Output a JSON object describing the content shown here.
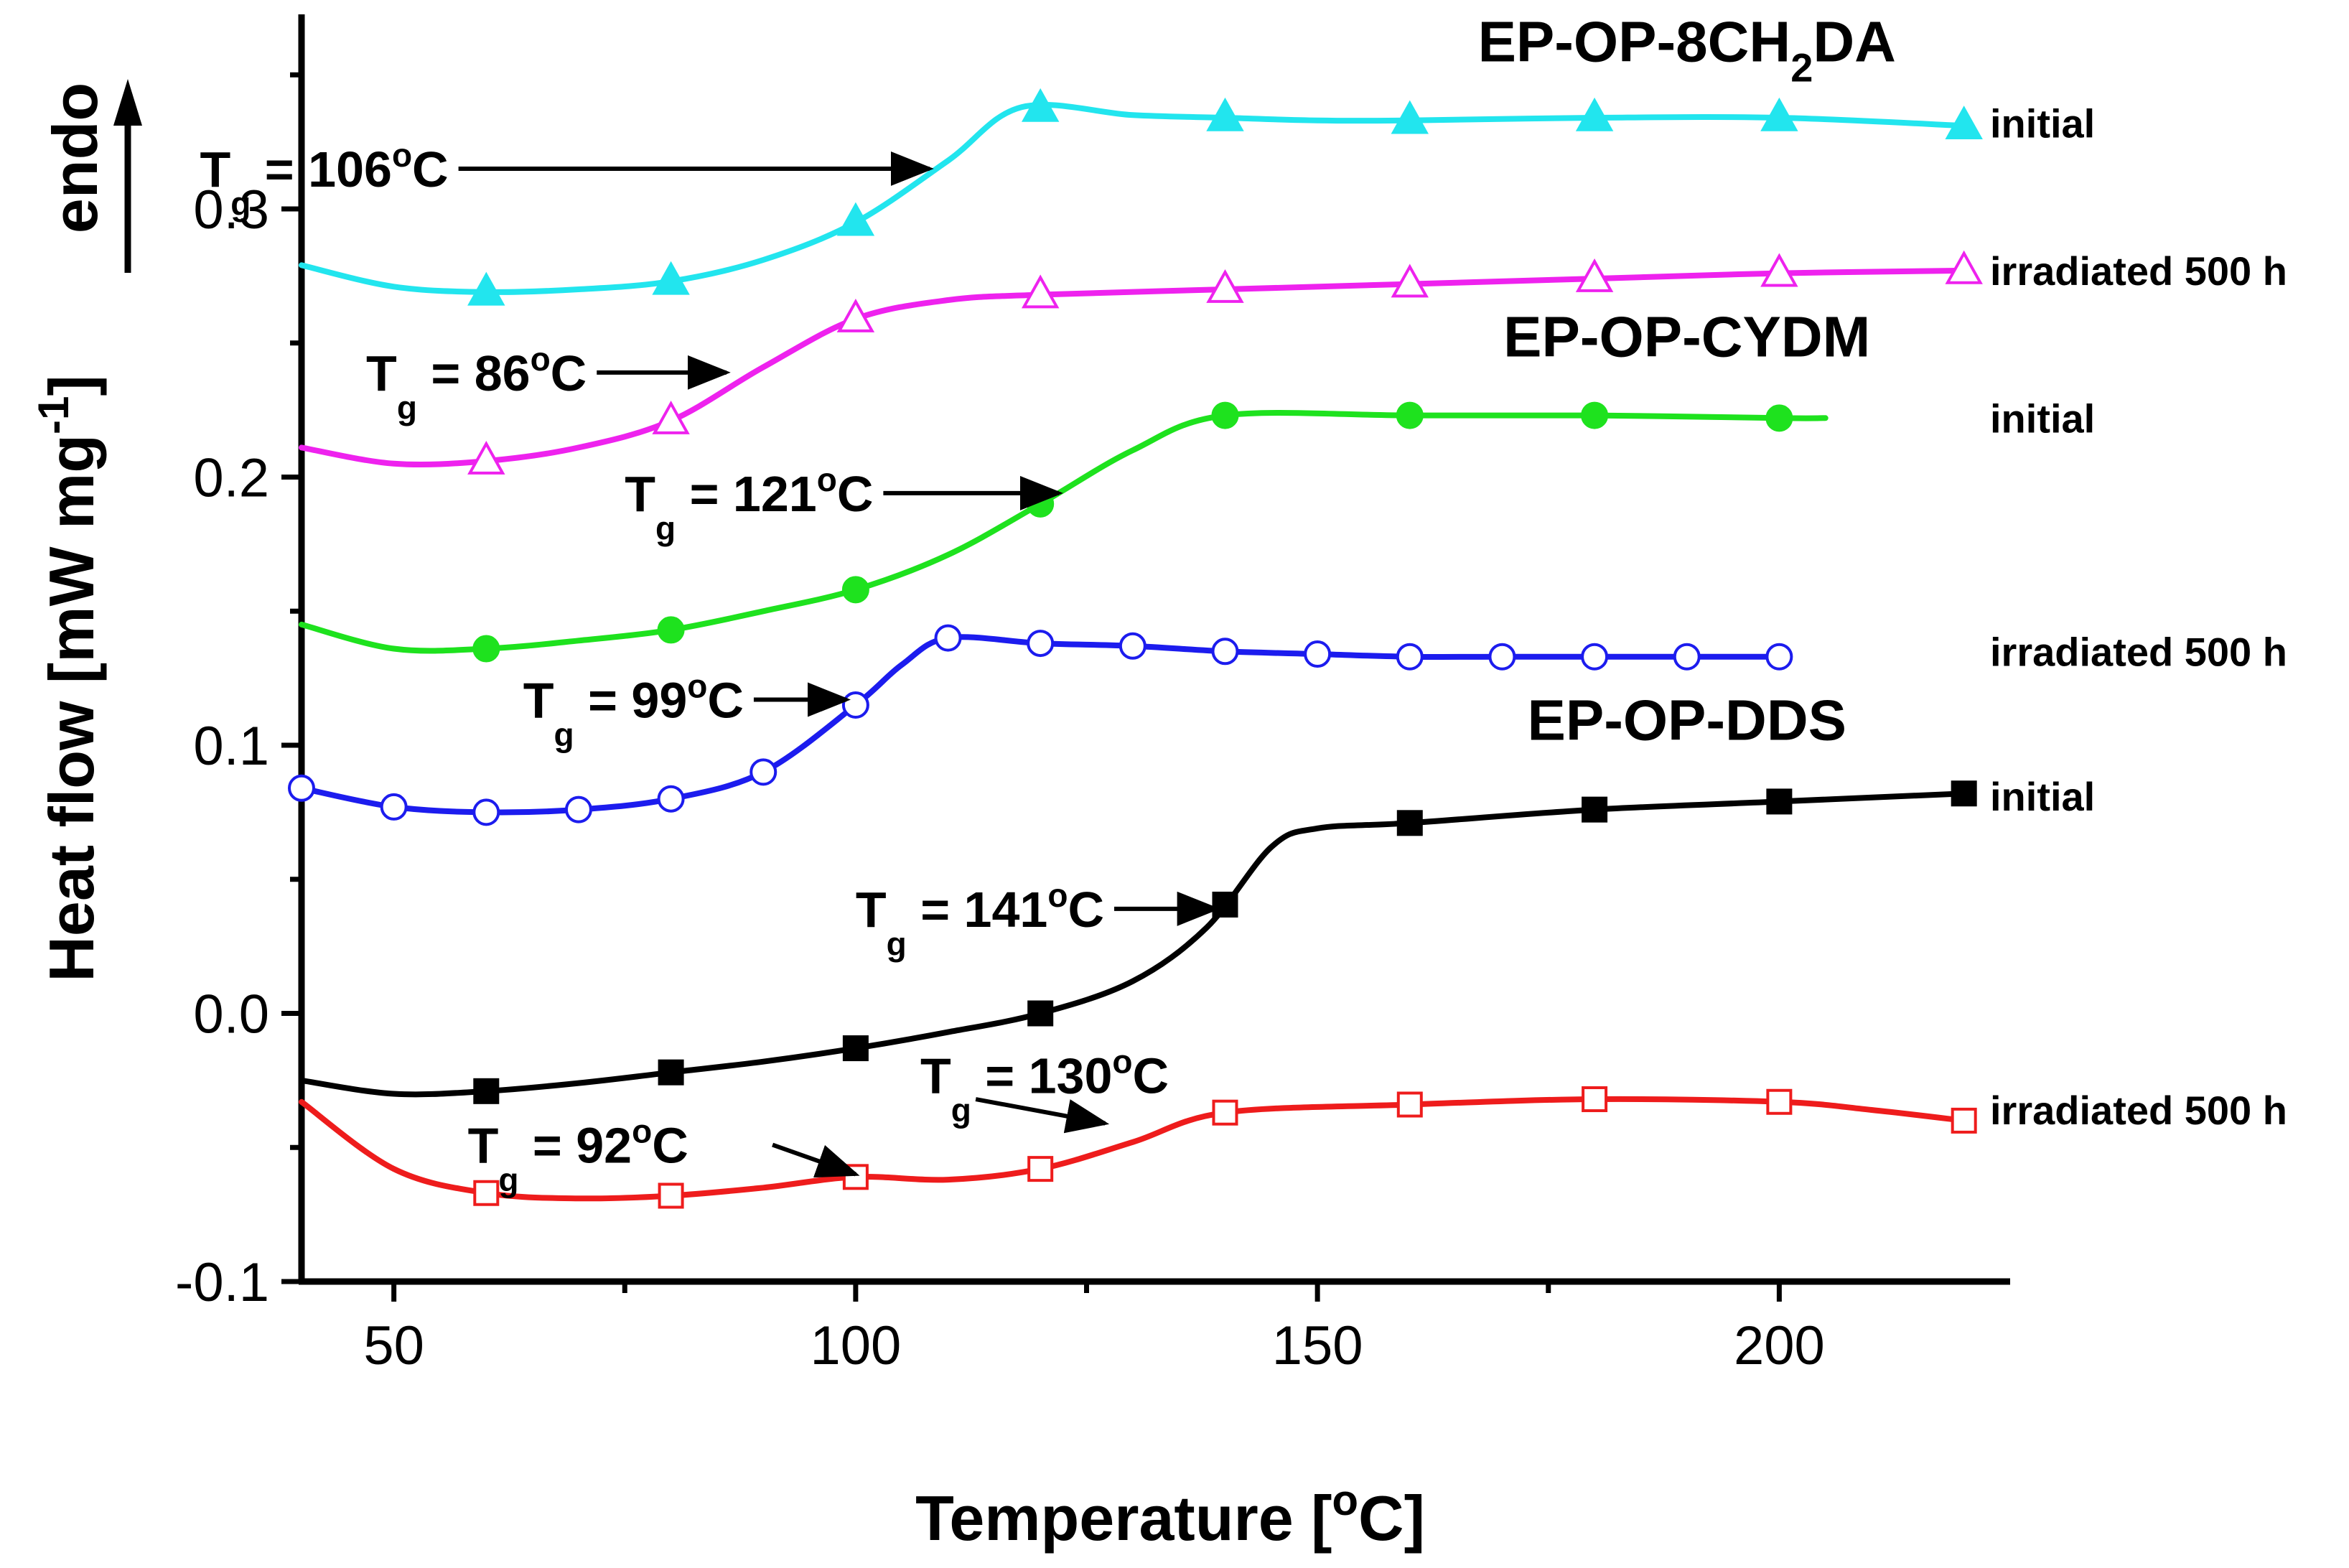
{
  "chart_data": {
    "type": "line",
    "xlabel": {
      "main": "Temperature [",
      "sup": "o",
      "unit": "C]"
    },
    "ylabel": {
      "main": "Heat flow [mW mg",
      "sup": "-1",
      "close": "]"
    },
    "endo_label": "endo",
    "xlim": [
      40,
      225
    ],
    "ylim": [
      -0.1,
      0.38
    ],
    "x_ticks": [
      50,
      100,
      150,
      200
    ],
    "x_tick_labels": [
      "50",
      "100",
      "150",
      "200"
    ],
    "y_ticks": [
      -0.1,
      0.0,
      0.1,
      0.2,
      0.3
    ],
    "y_tick_labels": [
      "-0.1",
      "0.0",
      "0.1",
      "0.2",
      "0.3"
    ],
    "group_labels": [
      {
        "name": "ep-op-8ch2da",
        "parts": [
          "EP-OP-8CH",
          "2",
          "DA"
        ],
        "x": 190,
        "y": 0.355
      },
      {
        "name": "ep-op-cydm",
        "parts": [
          "EP-OP-CYDM"
        ],
        "x": 190,
        "y": 0.245
      },
      {
        "name": "ep-op-dds",
        "parts": [
          "EP-OP-DDS"
        ],
        "x": 190,
        "y": 0.102
      }
    ],
    "series": [
      {
        "name": "EP-OP-8CH2DA initial",
        "group": "EP-OP-8CH2DA",
        "state": "initial",
        "color": "#22e5ee",
        "marker": "triangle",
        "filled": true,
        "x": [
          40,
          50,
          60,
          70,
          80,
          90,
          100,
          110,
          118,
          130,
          140,
          150,
          160,
          180,
          200,
          220
        ],
        "y": [
          0.279,
          0.271,
          0.269,
          0.27,
          0.273,
          0.281,
          0.295,
          0.318,
          0.338,
          0.335,
          0.334,
          0.333,
          0.333,
          0.334,
          0.334,
          0.331
        ],
        "marker_x": [
          60,
          80,
          100,
          120,
          140,
          160,
          180,
          200,
          220
        ],
        "tg": {
          "label": "T",
          "sub": "g",
          "value": " = 106",
          "sup": "o",
          "unit": "C",
          "x": 29,
          "y": 0.315,
          "arrow_to": [
            108,
            0.315
          ]
        }
      },
      {
        "name": "EP-OP-8CH2DA irradiated 500 h",
        "group": "EP-OP-8CH2DA",
        "state": "irradiated 500 h",
        "color": "#ee22ee",
        "marker": "triangle",
        "filled": false,
        "x": [
          40,
          50,
          60,
          70,
          80,
          90,
          100,
          110,
          120,
          140,
          160,
          180,
          200,
          220
        ],
        "y": [
          0.211,
          0.205,
          0.206,
          0.211,
          0.221,
          0.241,
          0.259,
          0.266,
          0.268,
          0.27,
          0.272,
          0.274,
          0.276,
          0.277
        ],
        "marker_x": [
          60,
          80,
          100,
          120,
          140,
          160,
          180,
          200,
          220
        ],
        "tg": {
          "label": "T",
          "sub": "g",
          "value": " = 86",
          "sup": "o",
          "unit": "C",
          "x": 47,
          "y": 0.239,
          "arrow_to": [
            86,
            0.239
          ]
        }
      },
      {
        "name": "EP-OP-CYDM initial",
        "group": "EP-OP-CYDM",
        "state": "initial",
        "color": "#1ee21e",
        "marker": "circle",
        "filled": true,
        "x": [
          40,
          50,
          60,
          70,
          80,
          90,
          100,
          110,
          120,
          130,
          140,
          160,
          180,
          200,
          205
        ],
        "y": [
          0.145,
          0.136,
          0.136,
          0.139,
          0.143,
          0.15,
          0.158,
          0.171,
          0.19,
          0.21,
          0.223,
          0.223,
          0.223,
          0.222,
          0.222
        ],
        "marker_x": [
          60,
          80,
          100,
          120,
          140,
          160,
          180,
          200
        ],
        "tg": {
          "label": "T",
          "sub": "g",
          "value": " = 121",
          "sup": "o",
          "unit": "C",
          "x": 75,
          "y": 0.194,
          "arrow_to": [
            122,
            0.194
          ]
        }
      },
      {
        "name": "EP-OP-CYDM irradiated 500 h",
        "group": "EP-OP-CYDM",
        "state": "irradiated 500 h",
        "color": "#1c1cee",
        "marker": "circle",
        "filled": false,
        "x": [
          40,
          50,
          60,
          70,
          80,
          90,
          100,
          105,
          110,
          120,
          130,
          140,
          150,
          160,
          170,
          180,
          190,
          200
        ],
        "y": [
          0.084,
          0.077,
          0.075,
          0.076,
          0.08,
          0.09,
          0.115,
          0.13,
          0.14,
          0.138,
          0.137,
          0.135,
          0.134,
          0.133,
          0.133,
          0.133,
          0.133,
          0.133
        ],
        "marker_x": [
          40,
          50,
          60,
          70,
          80,
          90,
          100,
          110,
          120,
          130,
          140,
          150,
          160,
          170,
          180,
          190,
          200
        ],
        "tg": {
          "label": "T",
          "sub": "g",
          "value": " = 99",
          "sup": "o",
          "unit": "C",
          "x": 64,
          "y": 0.117,
          "arrow_to": [
            99,
            0.117
          ]
        }
      },
      {
        "name": "EP-OP-DDS initial",
        "group": "EP-OP-DDS",
        "state": "initial",
        "color": "#000000",
        "marker": "square",
        "filled": true,
        "x": [
          40,
          50,
          60,
          70,
          80,
          90,
          100,
          110,
          120,
          130,
          138,
          145,
          150,
          160,
          180,
          200,
          220
        ],
        "y": [
          -0.025,
          -0.03,
          -0.029,
          -0.026,
          -0.022,
          -0.018,
          -0.013,
          -0.007,
          0.0,
          0.012,
          0.032,
          0.062,
          0.069,
          0.071,
          0.076,
          0.079,
          0.082
        ],
        "marker_x": [
          60,
          80,
          100,
          120,
          140,
          160,
          180,
          200,
          220
        ],
        "tg": {
          "label": "T",
          "sub": "g",
          "value": " = 141",
          "sup": "o",
          "unit": "C",
          "x": 100,
          "y": 0.039,
          "arrow_to": [
            139,
            0.039
          ]
        }
      },
      {
        "name": "EP-OP-DDS irradiated 500 h",
        "group": "EP-OP-DDS",
        "state": "irradiated 500 h",
        "color": "#ee1c1c",
        "marker": "square",
        "filled": false,
        "x": [
          40,
          50,
          60,
          70,
          80,
          90,
          100,
          110,
          120,
          130,
          140,
          160,
          180,
          200,
          210,
          220
        ],
        "y": [
          -0.033,
          -0.058,
          -0.067,
          -0.069,
          -0.068,
          -0.065,
          -0.061,
          -0.062,
          -0.058,
          -0.048,
          -0.037,
          -0.034,
          -0.032,
          -0.033,
          -0.036,
          -0.04
        ],
        "marker_x": [
          60,
          80,
          100,
          120,
          140,
          160,
          180,
          200,
          220
        ],
        "tg_list": [
          {
            "label": "T",
            "sub": "g",
            "value": " = 92",
            "sup": "o",
            "unit": "C",
            "x": 58,
            "y": -0.049,
            "arrow_from": [
              91,
              -0.049
            ],
            "arrow_to": [
              100,
              -0.06
            ]
          },
          {
            "label": "T",
            "sub": "g",
            "value": " = 130",
            "sup": "o",
            "unit": "C",
            "x": 107,
            "y": -0.023,
            "arrow_from": [
              113,
              -0.032
            ],
            "arrow_to": [
              127,
              -0.041
            ]
          }
        ]
      }
    ],
    "state_labels": [
      {
        "text": "initial",
        "y": 0.332
      },
      {
        "text": "irradiated 500 h",
        "y": 0.277
      },
      {
        "text": "initial",
        "y": 0.222
      },
      {
        "text": "irradiated 500 h",
        "y": 0.135
      },
      {
        "text": "initial",
        "y": 0.081
      },
      {
        "text": "irradiated 500 h",
        "y": -0.036
      }
    ]
  }
}
